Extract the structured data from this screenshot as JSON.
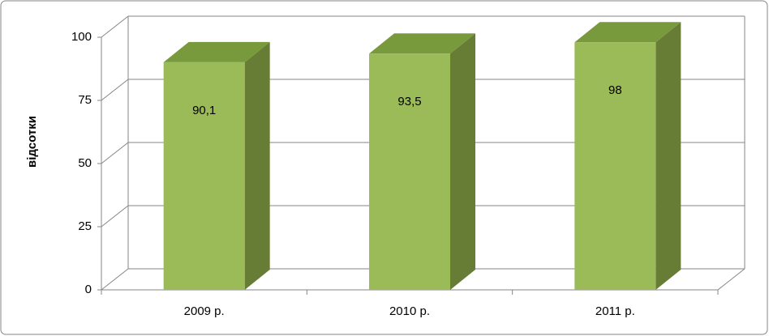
{
  "chart_data": {
    "type": "bar3d",
    "y_label": "відсотки",
    "categories": [
      "2009 р.",
      "2010 р.",
      "2011 р."
    ],
    "values": [
      90.1,
      93.5,
      98
    ],
    "value_labels": [
      "90,1",
      "93,5",
      "98"
    ],
    "color": "#9bbb59",
    "ylim": [
      0,
      100
    ],
    "yticks": [
      0,
      25,
      50,
      75,
      100
    ],
    "grid": true
  }
}
